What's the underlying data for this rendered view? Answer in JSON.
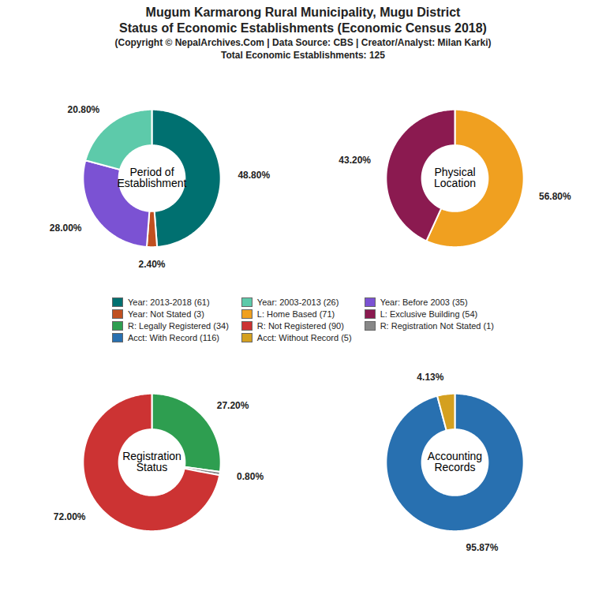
{
  "chart_data": {
    "type": "pie",
    "title": [
      "Mugum Karmarong Rural Municipality, Mugu District",
      "Status of Economic Establishments (Economic Census 2018)"
    ],
    "subtitle": [
      "(Copyright © NepalArchives.Com | Data Source: CBS | Creator/Analyst: Milan Karki)",
      "Total Economic Establishments: 125"
    ],
    "legend": "center",
    "legend_items": [
      {
        "name": "Year: 2013-2018 (61)",
        "color": "#007070"
      },
      {
        "name": "Year: Not Stated (3)",
        "color": "#C05020"
      },
      {
        "name": "R: Legally Registered (34)",
        "color": "#2E9E50"
      },
      {
        "name": "Acct: With Record (116)",
        "color": "#2870B0"
      },
      {
        "name": "Year: 2003-2013 (26)",
        "color": "#5DCAAA"
      },
      {
        "name": "L: Home Based (71)",
        "color": "#F0A020"
      },
      {
        "name": "R: Not Registered (90)",
        "color": "#CC3333"
      },
      {
        "name": "Acct: Without Record (5)",
        "color": "#D4A020"
      },
      {
        "name": "Year: Before 2003 (35)",
        "color": "#7B52D3"
      },
      {
        "name": "L: Exclusive Building (54)",
        "color": "#8B1A50"
      },
      {
        "name": "R: Registration Not Stated (1)",
        "color": "#888888"
      }
    ],
    "charts": [
      {
        "type": "pie",
        "title": "Period of\nEstablishment",
        "values": [
          48.8,
          2.4,
          28.0,
          20.8
        ],
        "value_labels": [
          "48.80%",
          "2.40%",
          "28.00%",
          "20.80%"
        ],
        "colors": [
          "#007070",
          "#C05020",
          "#7B52D3",
          "#5DCAAA"
        ],
        "data_labels": true
      },
      {
        "type": "pie",
        "title": "Physical\nLocation",
        "values": [
          56.8,
          43.2
        ],
        "value_labels": [
          "56.80%",
          "43.20%"
        ],
        "colors": [
          "#F0A020",
          "#8B1A50"
        ],
        "data_labels": true
      },
      {
        "type": "pie",
        "title": "Registration\nStatus",
        "values": [
          27.2,
          0.8,
          72.0
        ],
        "value_labels": [
          "27.20%",
          "0.80%",
          "72.00%"
        ],
        "colors": [
          "#2E9E50",
          "#888888",
          "#CC3333"
        ],
        "data_labels": true
      },
      {
        "type": "pie",
        "title": "Accounting\nRecords",
        "values": [
          95.87,
          4.13
        ],
        "value_labels": [
          "95.87%",
          "4.13%"
        ],
        "colors": [
          "#2870B0",
          "#D4A020"
        ],
        "data_labels": true
      }
    ]
  }
}
